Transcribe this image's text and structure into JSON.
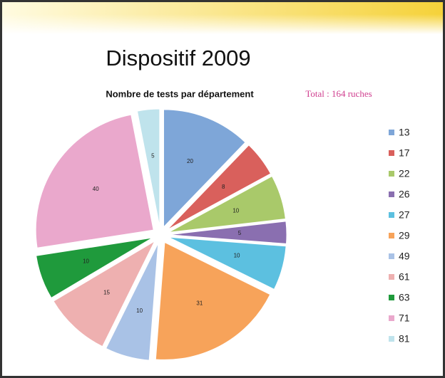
{
  "title": "Dispositif 2009",
  "chart_data": {
    "type": "pie",
    "title": "Nombre de tests par département",
    "annotation": "Total : 164 ruches",
    "categories": [
      "13",
      "17",
      "22",
      "26",
      "27",
      "29",
      "49",
      "61",
      "63",
      "71",
      "81"
    ],
    "values": [
      20,
      8,
      10,
      5,
      10,
      31,
      10,
      15,
      10,
      40,
      5
    ],
    "colors": [
      "#7ea6d8",
      "#d9605c",
      "#a9c96a",
      "#8a6fb0",
      "#5cc0e0",
      "#f7a35a",
      "#a9c2e6",
      "#eeb0b0",
      "#1f9a3c",
      "#eaa8cc",
      "#bfe3ec"
    ],
    "legend": "right"
  }
}
